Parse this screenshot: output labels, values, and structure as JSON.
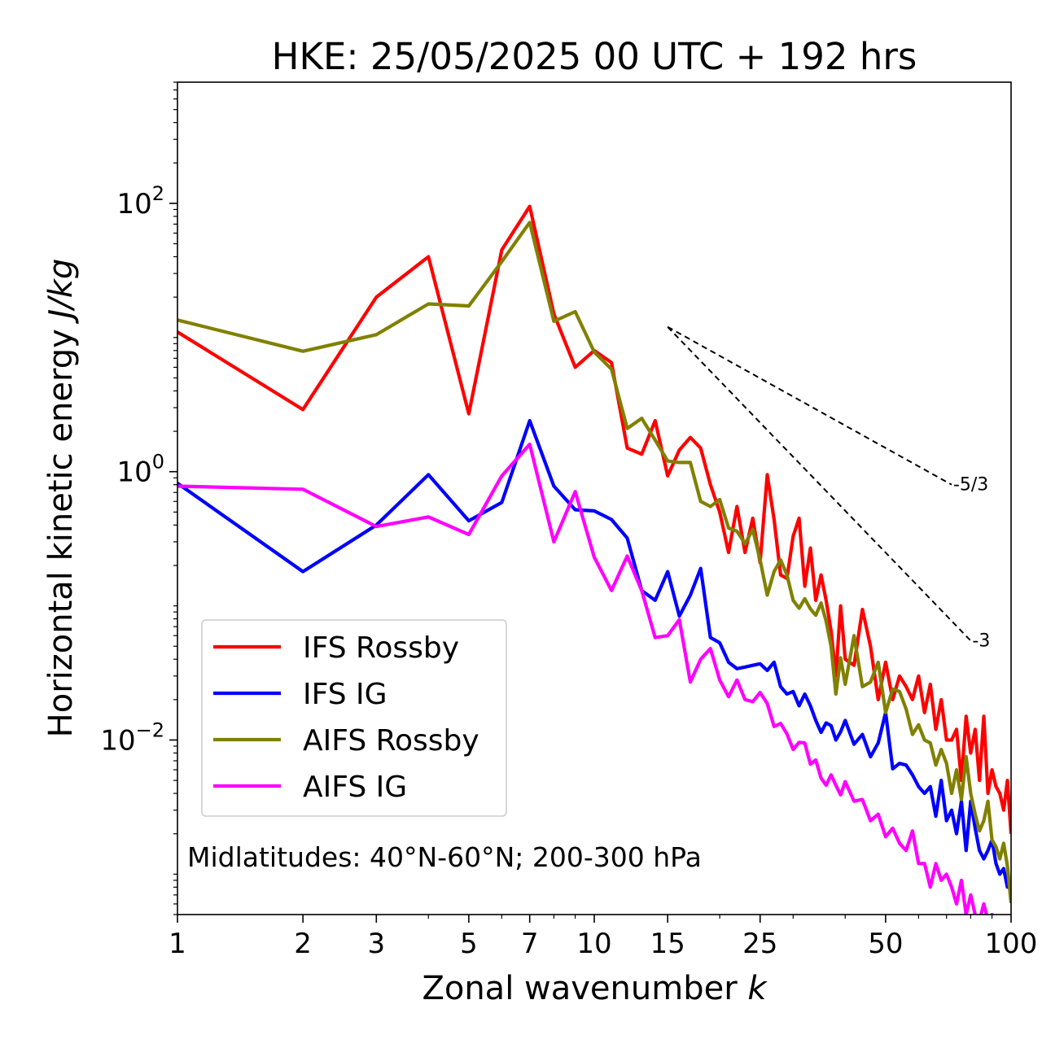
{
  "chart_data": {
    "type": "line",
    "title": "HKE: 25/05/2025 00 UTC + 192 hrs",
    "xlabel": "Zonal wavenumber",
    "xlabel_var": "k",
    "ylabel": "Horizontal kinetic energy",
    "ylabel_unit": "J/kg",
    "xscale": "log",
    "yscale": "log",
    "xlim": [
      1,
      100
    ],
    "ylim": [
      0.0005,
      800
    ],
    "xticks": [
      {
        "value": 1,
        "label": "1"
      },
      {
        "value": 2,
        "label": "2"
      },
      {
        "value": 3,
        "label": "3"
      },
      {
        "value": 5,
        "label": "5"
      },
      {
        "value": 7,
        "label": "7"
      },
      {
        "value": 10,
        "label": "10"
      },
      {
        "value": 15,
        "label": "15"
      },
      {
        "value": 25,
        "label": "25"
      },
      {
        "value": 50,
        "label": "50"
      },
      {
        "value": 100,
        "label": "100"
      }
    ],
    "yticks": [
      {
        "value": 0.01,
        "base": "10",
        "exp": "−2"
      },
      {
        "value": 1,
        "base": "10",
        "exp": "0"
      },
      {
        "value": 100,
        "base": "10",
        "exp": "2"
      }
    ],
    "annotation": "Midlatitudes: 40°N-60°N; 200-300 hPa",
    "legend_position": "lower-left",
    "grid": false,
    "reference_lines": [
      {
        "label": "-5/3",
        "x0": 15,
        "y0": 12,
        "x1": 72,
        "y1": 0.8
      },
      {
        "label": "-3",
        "x0": 15,
        "y0": 12,
        "x1": 80,
        "y1": 0.055
      }
    ],
    "series": [
      {
        "name": "IFS Rossby",
        "color": "#ff0000",
        "x": [
          1,
          2,
          3,
          4,
          5,
          6,
          7,
          8,
          9,
          10,
          11,
          12,
          13,
          14,
          15,
          16,
          17,
          18,
          19,
          20,
          21,
          22,
          23,
          24,
          25,
          26,
          27,
          28,
          29,
          30,
          31,
          32,
          33,
          34,
          35,
          36,
          37,
          38,
          39,
          40,
          42,
          44,
          46,
          48,
          50,
          52,
          54,
          56,
          58,
          60,
          62,
          64,
          66,
          68,
          70,
          72,
          74,
          76,
          78,
          80,
          82,
          84,
          86,
          88,
          90,
          92,
          94,
          96,
          98,
          100
        ],
        "y": [
          11,
          2.9,
          20,
          40,
          2.7,
          45,
          95,
          15,
          6,
          8,
          6.5,
          1.5,
          1.35,
          2.4,
          0.93,
          1.45,
          1.8,
          1.5,
          0.8,
          0.5,
          0.25,
          0.55,
          0.25,
          0.45,
          0.21,
          0.95,
          0.44,
          0.17,
          0.16,
          0.33,
          0.45,
          0.14,
          0.27,
          0.11,
          0.17,
          0.11,
          0.065,
          0.03,
          0.1,
          0.04,
          0.036,
          0.094,
          0.05,
          0.02,
          0.038,
          0.02,
          0.03,
          0.025,
          0.02,
          0.03,
          0.016,
          0.026,
          0.012,
          0.02,
          0.01,
          0.01,
          0.012,
          0.005,
          0.015,
          0.008,
          0.012,
          0.005,
          0.015,
          0.004,
          0.006,
          0.0045,
          0.004,
          0.003,
          0.005,
          0.002
        ]
      },
      {
        "name": "IFS IG",
        "color": "#0000ff",
        "x": [
          1,
          2,
          3,
          4,
          5,
          6,
          7,
          8,
          9,
          10,
          11,
          12,
          13,
          14,
          15,
          16,
          17,
          18,
          19,
          20,
          21,
          22,
          23,
          24,
          25,
          26,
          27,
          28,
          29,
          30,
          31,
          32,
          33,
          34,
          35,
          36,
          37,
          38,
          39,
          40,
          42,
          44,
          46,
          48,
          50,
          52,
          54,
          56,
          58,
          60,
          62,
          64,
          66,
          68,
          70,
          72,
          74,
          76,
          78,
          80,
          82,
          84,
          86,
          88,
          90,
          92,
          94,
          96,
          98,
          100
        ],
        "y": [
          0.82,
          0.18,
          0.4,
          0.95,
          0.43,
          0.59,
          2.4,
          0.78,
          0.52,
          0.51,
          0.44,
          0.32,
          0.13,
          0.11,
          0.18,
          0.084,
          0.12,
          0.19,
          0.058,
          0.053,
          0.038,
          0.034,
          0.035,
          0.036,
          0.037,
          0.033,
          0.038,
          0.025,
          0.022,
          0.023,
          0.018,
          0.022,
          0.018,
          0.014,
          0.0114,
          0.0134,
          0.0128,
          0.01,
          0.0115,
          0.014,
          0.0093,
          0.011,
          0.0075,
          0.0095,
          0.016,
          0.0061,
          0.0067,
          0.0065,
          0.0055,
          0.0045,
          0.004,
          0.0045,
          0.0027,
          0.005,
          0.0025,
          0.003,
          0.002,
          0.0035,
          0.0015,
          0.0035,
          0.0022,
          0.0015,
          0.0013,
          0.0015,
          0.0018,
          0.0012,
          0.001,
          0.0011,
          0.0008,
          0.00085
        ]
      },
      {
        "name": "AIFS Rossby",
        "color": "#808000",
        "x": [
          1,
          2,
          3,
          4,
          5,
          6,
          7,
          8,
          9,
          10,
          11,
          12,
          13,
          14,
          15,
          16,
          17,
          18,
          19,
          20,
          21,
          22,
          23,
          24,
          25,
          26,
          27,
          28,
          29,
          30,
          31,
          32,
          33,
          34,
          35,
          36,
          37,
          38,
          39,
          40,
          42,
          44,
          46,
          48,
          50,
          52,
          54,
          56,
          58,
          60,
          62,
          64,
          66,
          68,
          70,
          72,
          74,
          76,
          78,
          80,
          82,
          84,
          86,
          88,
          90,
          92,
          94,
          96,
          98,
          100
        ],
        "y": [
          13.5,
          7.9,
          10.5,
          17.8,
          17.2,
          36.8,
          72,
          13.2,
          15.6,
          7.8,
          5.8,
          2.1,
          2.5,
          1.72,
          1.2,
          1.17,
          1.17,
          0.6,
          0.55,
          0.62,
          0.38,
          0.36,
          0.29,
          0.37,
          0.22,
          0.12,
          0.18,
          0.22,
          0.17,
          0.11,
          0.096,
          0.113,
          0.095,
          0.085,
          0.105,
          0.077,
          0.05,
          0.022,
          0.041,
          0.026,
          0.06,
          0.025,
          0.027,
          0.038,
          0.016,
          0.024,
          0.023,
          0.017,
          0.011,
          0.013,
          0.01,
          0.0095,
          0.0065,
          0.0085,
          0.0067,
          0.004,
          0.006,
          0.0036,
          0.0075,
          0.004,
          0.0028,
          0.0021,
          0.0025,
          0.0035,
          0.0018,
          0.0016,
          0.0013,
          0.0017,
          0.00115,
          0.00061
        ]
      },
      {
        "name": "AIFS IG",
        "color": "#ff00ff",
        "x": [
          1,
          2,
          3,
          4,
          5,
          6,
          7,
          8,
          9,
          10,
          11,
          12,
          13,
          14,
          15,
          16,
          17,
          18,
          19,
          20,
          21,
          22,
          23,
          24,
          25,
          26,
          27,
          28,
          29,
          30,
          31,
          32,
          33,
          34,
          35,
          36,
          37,
          38,
          39,
          40,
          42,
          44,
          46,
          48,
          50,
          52,
          54,
          56,
          58,
          60,
          62,
          64,
          66,
          68,
          70,
          72,
          74,
          76,
          78,
          80,
          82,
          84,
          86,
          88,
          90,
          92,
          94,
          96,
          98,
          100
        ],
        "y": [
          0.78,
          0.74,
          0.39,
          0.46,
          0.34,
          0.93,
          1.6,
          0.3,
          0.71,
          0.23,
          0.13,
          0.235,
          0.13,
          0.058,
          0.06,
          0.079,
          0.027,
          0.04,
          0.048,
          0.028,
          0.021,
          0.028,
          0.02,
          0.0193,
          0.0226,
          0.0187,
          0.0126,
          0.0133,
          0.0111,
          0.0085,
          0.0096,
          0.0095,
          0.0066,
          0.0071,
          0.0052,
          0.0046,
          0.0055,
          0.0046,
          0.0039,
          0.0049,
          0.0035,
          0.0036,
          0.0025,
          0.0028,
          0.0019,
          0.0022,
          0.0017,
          0.0015,
          0.0021,
          0.0012,
          0.0012,
          0.0008,
          0.0012,
          0.0009,
          0.001,
          0.0008,
          0.0006,
          0.0009,
          0.0005,
          0.0007,
          0.0005,
          0.00045,
          0.0006,
          0.00045,
          0.0005,
          0.0004,
          0.0004,
          0.0004,
          0.00035,
          0.00045
        ],
        "x_max": 92
      }
    ]
  }
}
